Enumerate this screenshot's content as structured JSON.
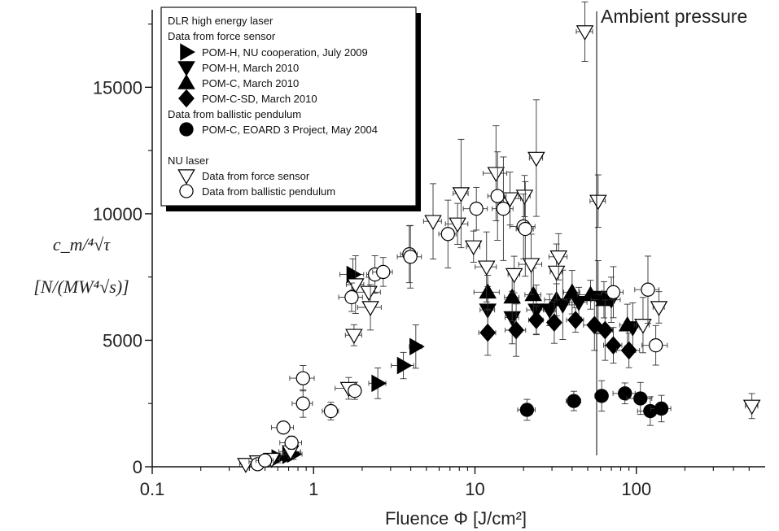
{
  "chart_data": {
    "type": "scatter",
    "x_scale": "log",
    "xlim": [
      0.1,
      600
    ],
    "ylim": [
      0,
      18000
    ],
    "xlabel": "Fluence Φ [J/cm²]",
    "ylabel_line1": "c_m/⁴√τ",
    "ylabel_line2": "[N/(MW⁴√s)]",
    "x_ticks": [
      "0.1",
      "1",
      "10",
      "100"
    ],
    "y_ticks": [
      "0",
      "5000",
      "10000",
      "15000"
    ],
    "annotation": "Ambient pressure",
    "legend": {
      "placement": "top-left",
      "groups": [
        {
          "title": "DLR high energy laser"
        },
        {
          "title": "Data from force sensor"
        },
        {
          "title": "Data from ballistic pendulum"
        },
        {
          "title": "NU laser"
        }
      ]
    },
    "series": [
      {
        "name": "POM-H, NU cooperation, July 2009",
        "marker": "triangle-right",
        "fill": "#000000",
        "points": [
          [
            0.6,
            350
          ],
          [
            0.7,
            450
          ],
          [
            0.75,
            500
          ],
          [
            1.75,
            7600
          ],
          [
            2.5,
            3300
          ],
          [
            3.6,
            4000
          ],
          [
            4.3,
            4750
          ]
        ]
      },
      {
        "name": "POM-H, March 2010",
        "marker": "triangle-down",
        "fill": "#000000",
        "points": [
          [
            12,
            6200
          ],
          [
            17,
            5900
          ],
          [
            24,
            6200
          ],
          [
            29,
            6200
          ],
          [
            35,
            6400
          ],
          [
            44,
            6500
          ],
          [
            58,
            6700
          ],
          [
            70,
            6600
          ],
          [
            95,
            5500
          ]
        ]
      },
      {
        "name": "POM-C, March 2010",
        "marker": "triangle-up",
        "fill": "#000000",
        "points": [
          [
            12,
            6900
          ],
          [
            17,
            6700
          ],
          [
            23,
            6800
          ],
          [
            32,
            6600
          ],
          [
            40,
            6900
          ],
          [
            52,
            6800
          ],
          [
            63,
            6600
          ],
          [
            88,
            5600
          ]
        ]
      },
      {
        "name": "POM-C-SD, March 2010",
        "marker": "diamond",
        "fill": "#000000",
        "points": [
          [
            12,
            5300
          ],
          [
            18,
            5400
          ],
          [
            24,
            5800
          ],
          [
            31,
            5700
          ],
          [
            42,
            5800
          ],
          [
            55,
            5600
          ],
          [
            64,
            5400
          ],
          [
            72,
            4800
          ],
          [
            90,
            4600
          ]
        ]
      },
      {
        "name": "POM-C, EOARD 3 Project, May 2004",
        "marker": "circle",
        "fill": "#000000",
        "points": [
          [
            21,
            2250
          ],
          [
            41,
            2600
          ],
          [
            61,
            2800
          ],
          [
            85,
            2900
          ],
          [
            106,
            2700
          ],
          [
            122,
            2200
          ],
          [
            143,
            2300
          ]
        ]
      },
      {
        "name": "Data from force sensor",
        "marker": "triangle-down",
        "fill": "none",
        "points": [
          [
            0.38,
            100
          ],
          [
            0.45,
            200
          ],
          [
            0.55,
            300
          ],
          [
            0.72,
            600
          ],
          [
            1.65,
            3100
          ],
          [
            1.78,
            5200
          ],
          [
            1.82,
            7200
          ],
          [
            2.2,
            6900
          ],
          [
            2.25,
            6300
          ],
          [
            5.5,
            9700
          ],
          [
            7.8,
            9600
          ],
          [
            8.2,
            10800
          ],
          [
            9.8,
            8700
          ],
          [
            11.8,
            7900
          ],
          [
            13.5,
            11600
          ],
          [
            16.5,
            10600
          ],
          [
            17.5,
            7600
          ],
          [
            20.3,
            10700
          ],
          [
            22.3,
            8000
          ],
          [
            24,
            12200
          ],
          [
            32,
            7700
          ],
          [
            33,
            8300
          ],
          [
            48,
            17200
          ],
          [
            58,
            10500
          ],
          [
            110,
            5600
          ],
          [
            138,
            6300
          ],
          [
            520,
            2400
          ]
        ]
      },
      {
        "name": "Data from ballistic pendulum",
        "marker": "circle",
        "fill": "none",
        "points": [
          [
            0.45,
            100
          ],
          [
            0.5,
            250
          ],
          [
            0.65,
            1550
          ],
          [
            0.73,
            950
          ],
          [
            0.86,
            3500
          ],
          [
            0.86,
            2500
          ],
          [
            1.28,
            2200
          ],
          [
            1.72,
            6700
          ],
          [
            1.8,
            3000
          ],
          [
            2.4,
            7600
          ],
          [
            2.7,
            7700
          ],
          [
            3.92,
            8400
          ],
          [
            3.98,
            8300
          ],
          [
            6.8,
            9200
          ],
          [
            10.2,
            10200
          ],
          [
            13.8,
            10700
          ],
          [
            15,
            10200
          ],
          [
            20,
            9500
          ],
          [
            20.5,
            9400
          ],
          [
            72,
            6900
          ],
          [
            118,
            7000
          ],
          [
            132,
            4800
          ]
        ]
      }
    ]
  }
}
